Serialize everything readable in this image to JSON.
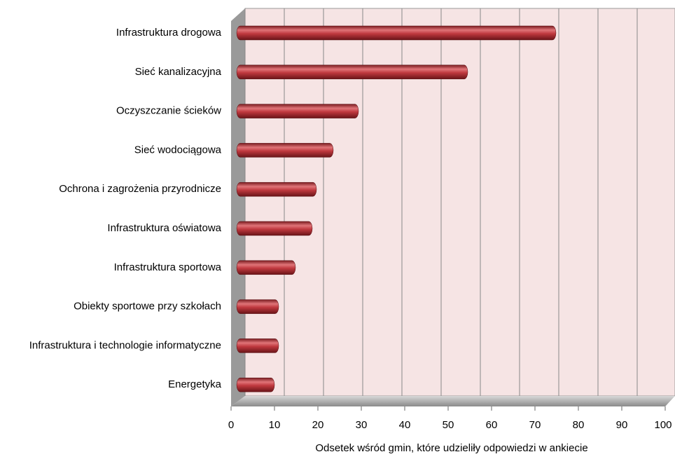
{
  "chart_data": {
    "type": "bar",
    "orientation": "horizontal",
    "x_label": "Odsetek wśród gmin, które udzieliły odpowiedzi w ankiecie",
    "categories": [
      "Infrastruktura drogowa",
      "Sieć kanalizacyjna",
      "Oczyszczanie ścieków",
      "Sieć wodociągowa",
      "Ochrona i zagrożenia przyrodnicze",
      "Infrastruktura oświatowa",
      "Infrastruktura sportowa",
      "Obiekty sportowe przy szkołach",
      "Infrastruktura i technologie informatyczne",
      "Energetyka"
    ],
    "values": [
      76,
      55,
      29,
      23,
      19,
      18,
      14,
      10,
      10,
      9
    ],
    "color": "#c0393f",
    "xlim": [
      0,
      100
    ],
    "xticks": [
      0,
      10,
      20,
      30,
      40,
      50,
      60,
      70,
      80,
      90,
      100
    ],
    "grid": true
  }
}
